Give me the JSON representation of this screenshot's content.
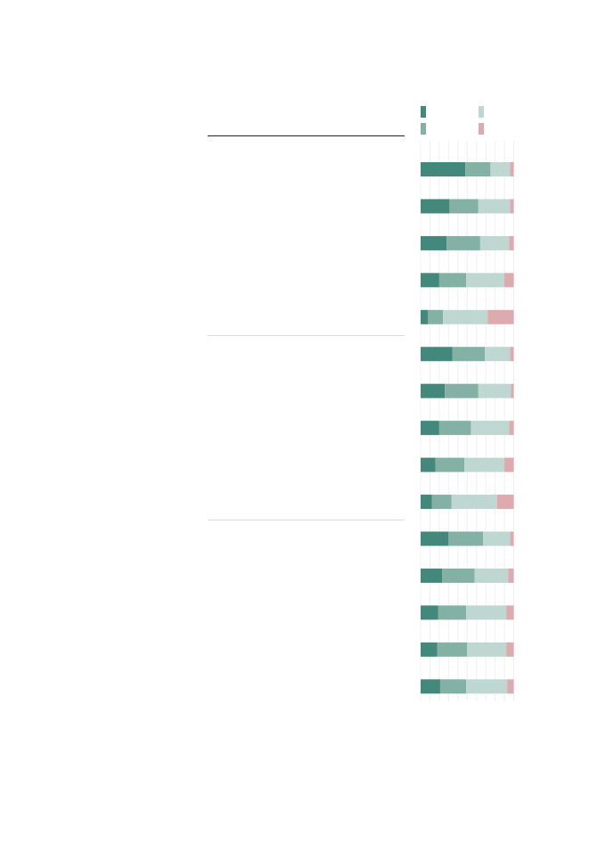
{
  "colors": {
    "very_much": "#42897b",
    "somewhat": "#83b2a4",
    "not_much": "#bfd7d1",
    "not_at_all": "#deaaad",
    "grid": "#f0f0f0",
    "group_rule": "#dddddd",
    "header_rule": "#222222"
  },
  "legend": [
    {
      "key": "very_much",
      "label": ""
    },
    {
      "key": "not_much",
      "label": ""
    },
    {
      "key": "somewhat",
      "label": ""
    },
    {
      "key": "not_at_all",
      "label": ""
    }
  ],
  "chart_data": {
    "type": "bar",
    "stacked": true,
    "orientation": "horizontal",
    "title": "",
    "xlabel": "",
    "ylabel": "",
    "xlim": [
      0,
      100
    ],
    "grid": true,
    "legend_position": "top-right",
    "groups": [
      {
        "label": "",
        "start": 0,
        "count": 5
      },
      {
        "label": "",
        "start": 5,
        "count": 5
      },
      {
        "label": "",
        "start": 10,
        "count": 5
      }
    ],
    "categories": [
      "",
      "",
      "",
      "",
      "",
      "",
      "",
      "",
      "",
      "",
      "",
      "",
      "",
      "",
      ""
    ],
    "series": [
      {
        "key": "very_much",
        "values": [
          48,
          31,
          28,
          20,
          8,
          34,
          26,
          20,
          16,
          12,
          30,
          23,
          19,
          18,
          21
        ]
      },
      {
        "key": "somewhat",
        "values": [
          27,
          31,
          36,
          29,
          16,
          35,
          36,
          34,
          31,
          21,
          37,
          35,
          30,
          32,
          28
        ]
      },
      {
        "key": "not_much",
        "values": [
          21,
          34,
          31,
          41,
          48,
          27,
          35,
          41,
          43,
          49,
          29,
          36,
          43,
          42,
          44
        ]
      },
      {
        "key": "not_at_all",
        "values": [
          4,
          4,
          5,
          10,
          28,
          4,
          3,
          5,
          10,
          18,
          4,
          6,
          8,
          8,
          7
        ]
      }
    ]
  }
}
